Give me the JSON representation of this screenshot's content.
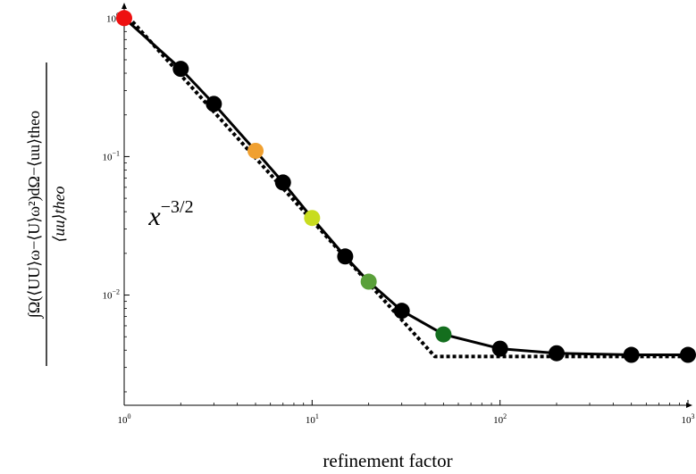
{
  "chart_data": {
    "type": "scatter",
    "xscale": "log",
    "yscale": "log",
    "xlim": [
      1,
      1000
    ],
    "ylim": [
      0.0016,
      1.2
    ],
    "xlabel": "refinement factor",
    "ylabel": {
      "numerator": "∫Ω(⟨UU⟩ω−⟨U⟩ω²)dΩ−⟨uu⟩theo",
      "denominator": "⟨uu⟩theo"
    },
    "x_ticks": [
      {
        "value": 1,
        "label": "10^0"
      },
      {
        "value": 10,
        "label": "10^1"
      },
      {
        "value": 100,
        "label": "10^2"
      },
      {
        "value": 1000,
        "label": "10^3"
      }
    ],
    "y_ticks": [
      {
        "value": 1,
        "label": "10^0"
      },
      {
        "value": 0.1,
        "label": "10^-1"
      },
      {
        "value": 0.01,
        "label": "10^-2"
      }
    ],
    "annotation": {
      "text": "x^-3/2",
      "x": 1.35,
      "y": 0.032
    },
    "grid": false,
    "series": [
      {
        "style": "solid",
        "marker": "circle",
        "points": [
          {
            "x": 1,
            "y": 1.0,
            "color": "#ee1111"
          },
          {
            "x": 2,
            "y": 0.43,
            "color": "#000000"
          },
          {
            "x": 3,
            "y": 0.24,
            "color": "#000000"
          },
          {
            "x": 5,
            "y": 0.11,
            "color": "#f0a030"
          },
          {
            "x": 7,
            "y": 0.065,
            "color": "#000000"
          },
          {
            "x": 10,
            "y": 0.036,
            "color": "#c8dc20"
          },
          {
            "x": 15,
            "y": 0.019,
            "color": "#000000"
          },
          {
            "x": 20,
            "y": 0.0125,
            "color": "#5aa03a"
          },
          {
            "x": 30,
            "y": 0.0077,
            "color": "#000000"
          },
          {
            "x": 50,
            "y": 0.0052,
            "color": "#146e1e"
          },
          {
            "x": 100,
            "y": 0.0041,
            "color": "#000000"
          },
          {
            "x": 200,
            "y": 0.0038,
            "color": "#000000"
          },
          {
            "x": 500,
            "y": 0.0037,
            "color": "#000000"
          },
          {
            "x": 1000,
            "y": 0.0037,
            "color": "#000000"
          }
        ]
      },
      {
        "style": "dotted-dashed",
        "marker": "none",
        "points": [
          {
            "x": 1,
            "y": 1.1
          },
          {
            "x": 45,
            "y": 0.0036
          },
          {
            "x": 1000,
            "y": 0.0036
          }
        ]
      }
    ]
  }
}
